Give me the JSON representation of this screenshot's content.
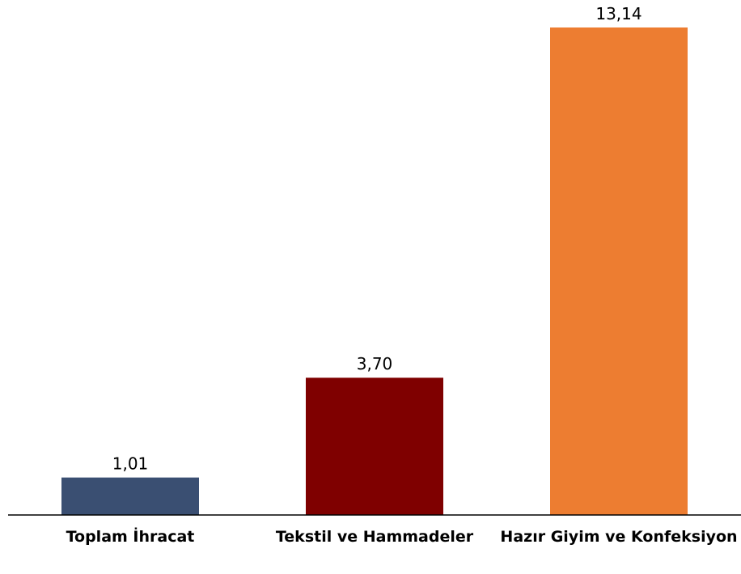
{
  "chart_data": {
    "type": "bar",
    "categories": [
      "Toplam İhracat",
      "Tekstil ve Hammadeler",
      "Hazır Giyim ve Konfeksiyon"
    ],
    "values": [
      1.01,
      3.7,
      13.14
    ],
    "value_labels": [
      "1,01",
      "3,70",
      "13,14"
    ],
    "colors": [
      "#3a4f72",
      "#7f0000",
      "#ed7d31"
    ]
  }
}
